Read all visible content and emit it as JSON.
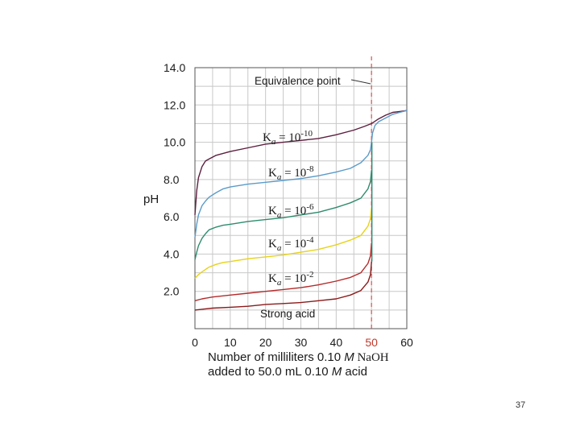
{
  "chart_data": {
    "type": "line",
    "title": "",
    "ylabel": "pH",
    "xlabel_line1": {
      "a": "Number of milliliters 0.10 ",
      "b": "M",
      "c": " NaOH"
    },
    "xlabel_line2": {
      "a": "added to 50.0 mL 0.10 ",
      "b": "M",
      "c": " acid"
    },
    "xlim": [
      0,
      60
    ],
    "ylim": [
      0,
      14
    ],
    "grid": true,
    "x_ticks": [
      "0",
      "10",
      "20",
      "30",
      "40",
      "50",
      "60"
    ],
    "y_ticks": [
      "2.0",
      "4.0",
      "6.0",
      "8.0",
      "10.0",
      "12.0",
      "14.0"
    ],
    "equivalence_point": {
      "x": 50,
      "label": "Equivalence point"
    },
    "series": [
      {
        "name": "Ka = 10-10",
        "label": {
          "base": "K",
          "sub": "a",
          "rest": " = 10",
          "sup": "-10"
        },
        "color": "#5c1f3f",
        "x": [
          0,
          0.5,
          1,
          2,
          3,
          4,
          6,
          10,
          15,
          20,
          25,
          30,
          35,
          40,
          45,
          48,
          50,
          52,
          54,
          56,
          58,
          60
        ],
        "y": [
          6.1,
          7.4,
          8.1,
          8.7,
          9.0,
          9.1,
          9.3,
          9.5,
          9.7,
          9.9,
          10.0,
          10.1,
          10.2,
          10.4,
          10.65,
          10.85,
          11.0,
          11.25,
          11.45,
          11.6,
          11.65,
          11.7
        ]
      },
      {
        "name": "Ka = 10-8",
        "label": {
          "base": "K",
          "sub": "a",
          "rest": " = 10",
          "sup": "-8"
        },
        "color": "#5b9bc9",
        "x": [
          0,
          0.5,
          1,
          2,
          3,
          4,
          6,
          8,
          10,
          15,
          20,
          25,
          30,
          35,
          40,
          44,
          47,
          49,
          49.7,
          50,
          50.3,
          51,
          52,
          54,
          56,
          58,
          60
        ],
        "y": [
          4.9,
          5.6,
          6.1,
          6.6,
          6.85,
          7.05,
          7.3,
          7.5,
          7.6,
          7.75,
          7.85,
          7.95,
          8.05,
          8.2,
          8.4,
          8.6,
          8.9,
          9.3,
          9.6,
          10.0,
          10.5,
          10.9,
          11.1,
          11.3,
          11.5,
          11.6,
          11.7
        ]
      },
      {
        "name": "Ka = 10-6",
        "label": {
          "base": "K",
          "sub": "a",
          "rest": " = 10",
          "sup": "-6"
        },
        "color": "#2e8b6e",
        "x": [
          0,
          0.5,
          1,
          2,
          3,
          4,
          6,
          8,
          10,
          15,
          20,
          25,
          30,
          35,
          40,
          44,
          47,
          49,
          49.7,
          50
        ],
        "y": [
          3.7,
          4.1,
          4.45,
          4.85,
          5.1,
          5.3,
          5.45,
          5.55,
          5.6,
          5.75,
          5.85,
          5.95,
          6.1,
          6.25,
          6.5,
          6.75,
          7.0,
          7.5,
          7.9,
          8.5
        ]
      },
      {
        "name": "Ka = 10-4",
        "label": {
          "base": "K",
          "sub": "a",
          "rest": " = 10",
          "sup": "-4"
        },
        "color": "#e8d21a",
        "x": [
          0,
          1,
          2,
          4,
          6,
          8,
          10,
          15,
          20,
          25,
          30,
          35,
          40,
          44,
          47,
          49,
          49.7,
          50
        ],
        "y": [
          2.7,
          2.9,
          3.05,
          3.3,
          3.45,
          3.55,
          3.6,
          3.75,
          3.85,
          3.95,
          4.1,
          4.25,
          4.5,
          4.75,
          5.0,
          5.5,
          5.9,
          6.5
        ]
      },
      {
        "name": "Ka = 10-2",
        "label": {
          "base": "K",
          "sub": "a",
          "rest": " = 10",
          "sup": "-2"
        },
        "color": "#b52a2a",
        "x": [
          0,
          2,
          5,
          10,
          15,
          20,
          25,
          30,
          35,
          40,
          44,
          47,
          49,
          49.7,
          50
        ],
        "y": [
          1.5,
          1.6,
          1.7,
          1.8,
          1.9,
          2.0,
          2.1,
          2.2,
          2.35,
          2.55,
          2.75,
          3.0,
          3.5,
          3.9,
          4.6
        ]
      },
      {
        "name": "Strong acid",
        "label": {
          "base": "Strong acid",
          "sub": "",
          "rest": "",
          "sup": ""
        },
        "color": "#8b1a1a",
        "x": [
          0,
          5,
          10,
          15,
          20,
          25,
          30,
          35,
          40,
          44,
          47,
          49,
          49.7,
          50
        ],
        "y": [
          1.0,
          1.1,
          1.15,
          1.2,
          1.3,
          1.35,
          1.4,
          1.5,
          1.6,
          1.8,
          2.05,
          2.5,
          2.9,
          3.6
        ]
      }
    ]
  },
  "page": {
    "number": "37"
  }
}
